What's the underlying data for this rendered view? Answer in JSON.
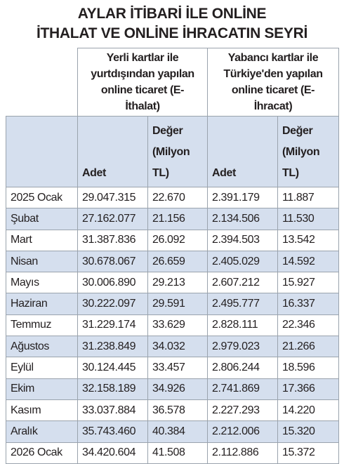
{
  "title": [
    "AYLAR İTİBARİ İLE ONLİNE",
    "İTHALAT VE ONLİNE İHRACATIN SEYRİ"
  ],
  "table": {
    "groups": [
      "Yerli kartlar ile yurtdışından yapılan online ticaret (E-İthalat)",
      "Yabancı kartlar ile Türkiye'den yapılan online ticaret (E-İhracat)"
    ],
    "columns": [
      "Adet",
      "Değer (Milyon TL)",
      "Adet",
      "Değer (Milyon TL)"
    ],
    "rows": [
      [
        "2025 Ocak",
        "29.047.315",
        "22.670",
        "2.391.179",
        "11.887"
      ],
      [
        "Şubat",
        "27.162.077",
        "21.156",
        "2.134.506",
        "11.530"
      ],
      [
        "Mart",
        "31.387.836",
        "26.092",
        "2.394.503",
        "13.542"
      ],
      [
        "Nisan",
        "30.678.067",
        "26.659",
        "2.405.029",
        "14.592"
      ],
      [
        "Mayıs",
        "30.006.890",
        "29.213",
        "2.607.212",
        "15.927"
      ],
      [
        "Haziran",
        "30.222.097",
        "29.591",
        "2.495.777",
        "16.337"
      ],
      [
        "Temmuz",
        "31.229.174",
        "33.629",
        "2.828.111",
        "22.346"
      ],
      [
        "Ağustos",
        "31.238.849",
        "34.032",
        "2.979.023",
        "21.266"
      ],
      [
        "Eylül",
        "30.124.445",
        "33.457",
        "2.806.244",
        "18.596"
      ],
      [
        "Ekim",
        "32.158.189",
        "34.926",
        "2.741.869",
        "17.366"
      ],
      [
        "Kasım",
        "33.037.884",
        "36.578",
        "2.227.293",
        "14.220"
      ],
      [
        "Aralık",
        "35.743.460",
        "40.384",
        "2.212.006",
        "15.320"
      ],
      [
        "2026 Ocak",
        "34.420.604",
        "41.508",
        "2.112.886",
        "15.372"
      ]
    ]
  }
}
